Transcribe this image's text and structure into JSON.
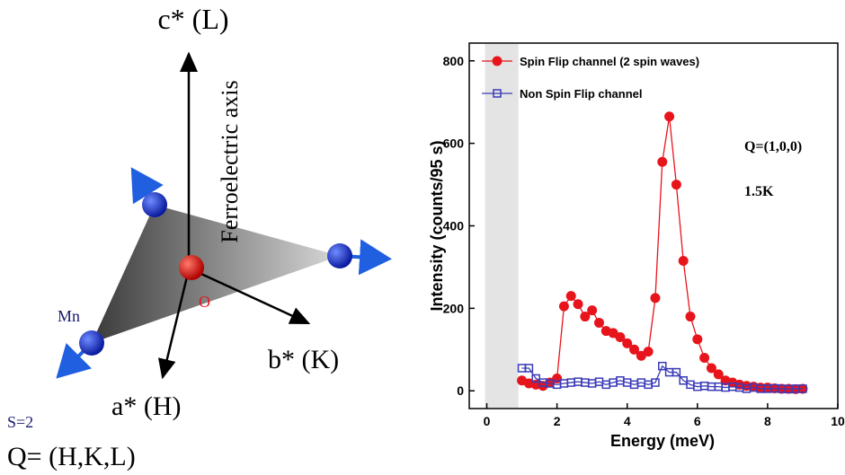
{
  "diagram": {
    "c_axis": "c* (L)",
    "ferroelectric": "Ferroelectric axis",
    "oxygen": "O",
    "mn": "Mn",
    "spin": "S=2",
    "a_axis": "a* (H)",
    "b_axis": "b* (K)",
    "q": "Q= (H,K,L)"
  },
  "chart_data": {
    "type": "line",
    "x_label": "Energy (meV)",
    "y_label": "Intensity (counts/95 s)",
    "annotations": [
      "Q=(1,0,0)",
      "1.5K"
    ],
    "legend": "upper left",
    "shaded_xrange": [
      -0.05,
      0.9
    ],
    "xlim": [
      -0.5,
      10
    ],
    "xticks": [
      0,
      2,
      4,
      6,
      8,
      10
    ],
    "ylim": [
      -43,
      843
    ],
    "yticks": [
      0,
      200,
      400,
      600,
      800
    ],
    "x": [
      1.0,
      1.2,
      1.4,
      1.6,
      1.8,
      2.0,
      2.2,
      2.4,
      2.6,
      2.8,
      3.0,
      3.2,
      3.4,
      3.6,
      3.8,
      4.0,
      4.2,
      4.4,
      4.6,
      4.8,
      5.0,
      5.2,
      5.4,
      5.6,
      5.8,
      6.0,
      6.2,
      6.4,
      6.6,
      6.8,
      7.0,
      7.2,
      7.4,
      7.6,
      7.8,
      8.0,
      8.2,
      8.4,
      8.6,
      8.8,
      9.0
    ],
    "series": [
      {
        "name": "Spin Flip channel (2 spin waves)",
        "color": "#e8141c",
        "marker": "circle",
        "values": [
          25,
          18,
          15,
          12,
          20,
          30,
          205,
          230,
          210,
          180,
          195,
          165,
          145,
          140,
          130,
          115,
          100,
          85,
          95,
          225,
          555,
          665,
          500,
          315,
          180,
          125,
          80,
          55,
          40,
          25,
          20,
          15,
          12,
          10,
          8,
          8,
          6,
          5,
          5,
          4,
          5
        ]
      },
      {
        "name": "Non Spin Flip channel",
        "color": "#3a3ab8",
        "marker": "square",
        "values": [
          55,
          55,
          30,
          20,
          18,
          15,
          18,
          20,
          22,
          20,
          18,
          22,
          15,
          20,
          25,
          20,
          15,
          20,
          15,
          20,
          60,
          45,
          45,
          25,
          15,
          10,
          12,
          10,
          10,
          8,
          10,
          8,
          5,
          8,
          5,
          5,
          6,
          5,
          4,
          5,
          5
        ]
      }
    ]
  }
}
